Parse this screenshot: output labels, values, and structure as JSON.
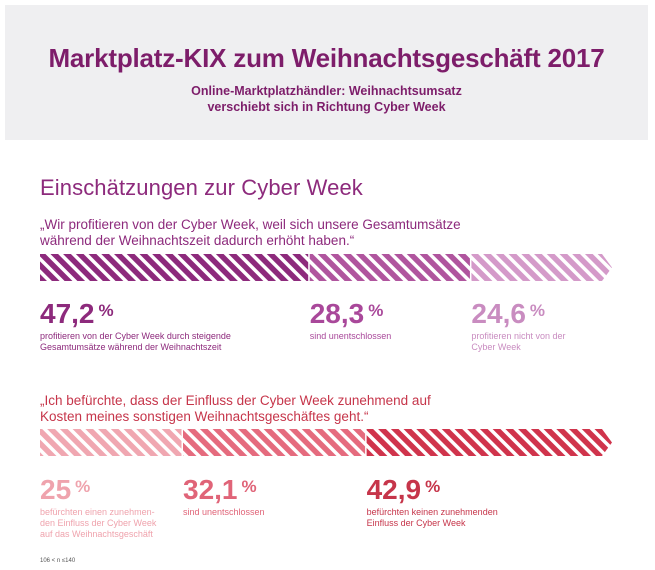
{
  "header": {
    "title": "Marktplatz-KIX zum Weihnachtsgeschäft 2017",
    "subtitle_lines": [
      "Online-Marktplatzhändler: Weihnachtsumsatz",
      "verschiebt sich in Richtung Cyber Week"
    ]
  },
  "section_title": "Einschätzungen zur Cyber Week",
  "footnote": "106 < n ≤140",
  "colors": {
    "accent_purple": "#8d2a7c",
    "accent_red": "#c6354a"
  },
  "chart_data": [
    {
      "type": "bar",
      "stacked": true,
      "orientation": "horizontal",
      "title_lines": [
        "„Wir profitieren von der Cyber Week, weil sich unsere Gesamtumsätze",
        "während der Weihnachtszeit dadurch erhöht haben.“"
      ],
      "unit": "%",
      "series": [
        {
          "value": 47.2,
          "display": "47,2",
          "label_lines": [
            "profitieren von der Cyber Week durch steigende",
            "Gesamtumsätze während der Weihnachtszeit"
          ],
          "color": "#8d2a7c",
          "text_color": "#8d2a7c"
        },
        {
          "value": 28.3,
          "display": "28,3",
          "label_lines": [
            "sind unentschlossen"
          ],
          "color": "#b0559e",
          "text_color": "#a9489a"
        },
        {
          "value": 24.6,
          "display": "24,6",
          "label_lines": [
            "profitieren nicht von der",
            "Cyber Week"
          ],
          "color": "#d49ac9",
          "text_color": "#c98cc0"
        }
      ]
    },
    {
      "type": "bar",
      "stacked": true,
      "orientation": "horizontal",
      "title_lines": [
        "„Ich befürchte, dass der Einfluss der Cyber Week zunehmend auf",
        "Kosten meines sonstigen Weihnachtsgeschäftes geht.“"
      ],
      "unit": "%",
      "series": [
        {
          "value": 25,
          "display": "25",
          "label_lines": [
            "befürchten einen zunehmen-",
            "den Einfluss der Cyber Week",
            "auf das Weihnachtsgeschäft"
          ],
          "color": "#f0a7b1",
          "text_color": "#efa3ad"
        },
        {
          "value": 32.1,
          "display": "32,1",
          "label_lines": [
            "sind unentschlossen"
          ],
          "color": "#e56b7e",
          "text_color": "#e06478"
        },
        {
          "value": 42.9,
          "display": "42,9",
          "label_lines": [
            "befürchten keinen zunehmenden",
            "Einfluss der Cyber Week"
          ],
          "color": "#d0344c",
          "text_color": "#c6354a"
        }
      ]
    }
  ]
}
